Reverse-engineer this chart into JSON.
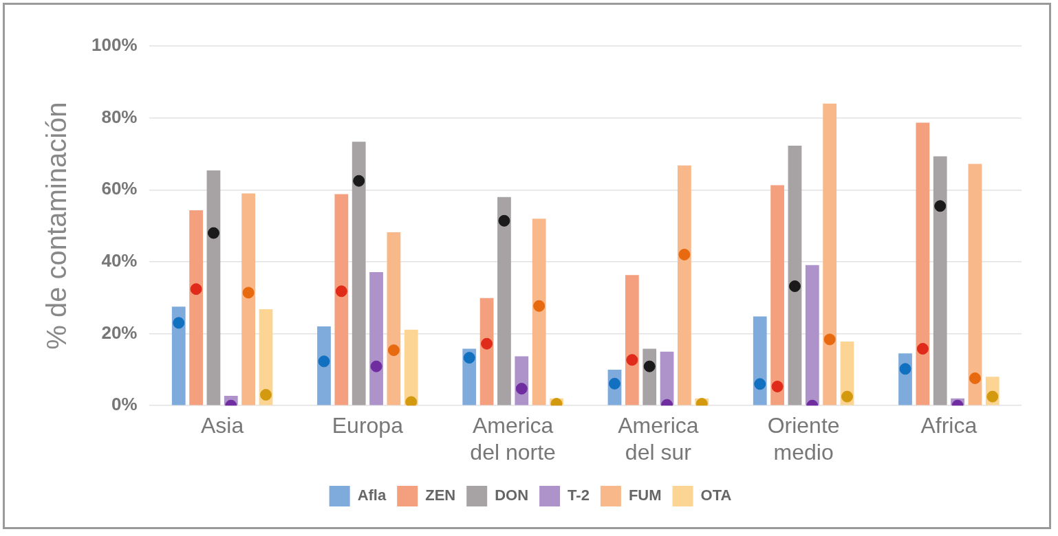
{
  "chart_data": {
    "type": "bar",
    "ylabel": "% de contaminación",
    "categories": [
      "Asia",
      "Europa",
      "America del norte",
      "America del sur",
      "Oriente medio",
      "Africa"
    ],
    "series": [
      {
        "name": "Afla",
        "color": "#7faadc",
        "values": [
          27.5,
          22,
          15.8,
          10,
          24.8,
          14.5
        ]
      },
      {
        "name": "ZEN",
        "color": "#f4a07e",
        "values": [
          54.3,
          58.8,
          29.9,
          36.3,
          61.3,
          78.7
        ]
      },
      {
        "name": "DON",
        "color": "#a7a3a4",
        "values": [
          65.4,
          73.4,
          58,
          15.8,
          72.3,
          69.3
        ]
      },
      {
        "name": "T-2",
        "color": "#ae93cb",
        "values": [
          2.7,
          37.1,
          13.7,
          15,
          39.1,
          2
        ]
      },
      {
        "name": "FUM",
        "color": "#f8b88a",
        "values": [
          59,
          48.2,
          52,
          66.8,
          84,
          67.2
        ]
      },
      {
        "name": "OTA",
        "color": "#fcd594",
        "values": [
          26.8,
          21.1,
          2,
          2,
          17.8,
          8
        ]
      },
      {
        "type": "scatter",
        "color": "#1170c0",
        "values": [
          23,
          12.3,
          13.3,
          6.1,
          6,
          10.2
        ]
      },
      {
        "type": "scatter",
        "color": "#e02a1a",
        "values": [
          32.4,
          31.8,
          17.2,
          12.7,
          5.3,
          15.8
        ]
      },
      {
        "type": "scatter",
        "color": "#1a1a1a",
        "values": [
          48,
          62.5,
          51.4,
          10.9,
          33.2,
          55.5
        ]
      },
      {
        "type": "scatter",
        "color": "#6f2da0",
        "values": [
          0,
          10.9,
          4.7,
          0.2,
          0,
          0
        ]
      },
      {
        "type": "scatter",
        "color": "#e86a10",
        "values": [
          31.4,
          15.4,
          27.7,
          42,
          18.4,
          7.6
        ]
      },
      {
        "type": "scatter",
        "color": "#d39a10",
        "values": [
          3,
          1,
          0.5,
          0.5,
          2.5,
          2.5
        ]
      }
    ],
    "ylim": [
      0,
      100
    ],
    "yticks": [
      {
        "value": 0,
        "label": "0%"
      },
      {
        "value": 20,
        "label": "20%"
      },
      {
        "value": 40,
        "label": "40%"
      },
      {
        "value": 60,
        "label": "60%"
      },
      {
        "value": 80,
        "label": "80%"
      },
      {
        "value": 100,
        "label": "100%"
      }
    ],
    "grid": "y",
    "legend": "bottom",
    "marker": "circle"
  }
}
